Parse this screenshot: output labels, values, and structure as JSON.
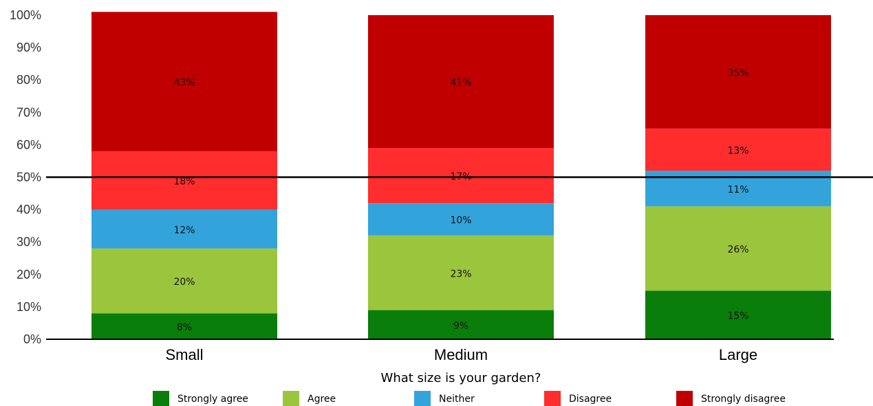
{
  "chart_data": {
    "type": "bar",
    "stacked": true,
    "title": "",
    "xlabel": "What size is your garden?",
    "ylabel": "",
    "ylim": [
      0,
      100
    ],
    "y_ticks": [
      "0%",
      "10%",
      "20%",
      "30%",
      "40%",
      "50%",
      "60%",
      "70%",
      "80%",
      "90%",
      "100%"
    ],
    "reference_line": 50,
    "categories": [
      "Small",
      "Medium",
      "Large"
    ],
    "series": [
      {
        "name": "Strongly agree",
        "color": "#0a7e0a",
        "values": [
          8,
          9,
          15
        ],
        "labels": [
          "8%",
          "9%",
          "15%"
        ]
      },
      {
        "name": "Agree",
        "color": "#9bc53d",
        "values": [
          20,
          23,
          26
        ],
        "labels": [
          "20%",
          "23%",
          "26%"
        ]
      },
      {
        "name": "Neither",
        "color": "#33a3dc",
        "values": [
          12,
          10,
          11
        ],
        "labels": [
          "12%",
          "10%",
          "11%"
        ]
      },
      {
        "name": "Disagree",
        "color": "#ff2d2d",
        "values": [
          18,
          17,
          13
        ],
        "labels": [
          "18%",
          "17%",
          "13%"
        ]
      },
      {
        "name": "Strongly disagree",
        "color": "#c00000",
        "values": [
          43,
          41,
          35
        ],
        "labels": [
          "43%",
          "41%",
          "35%"
        ]
      }
    ],
    "legend_position": "bottom",
    "grid": false
  }
}
